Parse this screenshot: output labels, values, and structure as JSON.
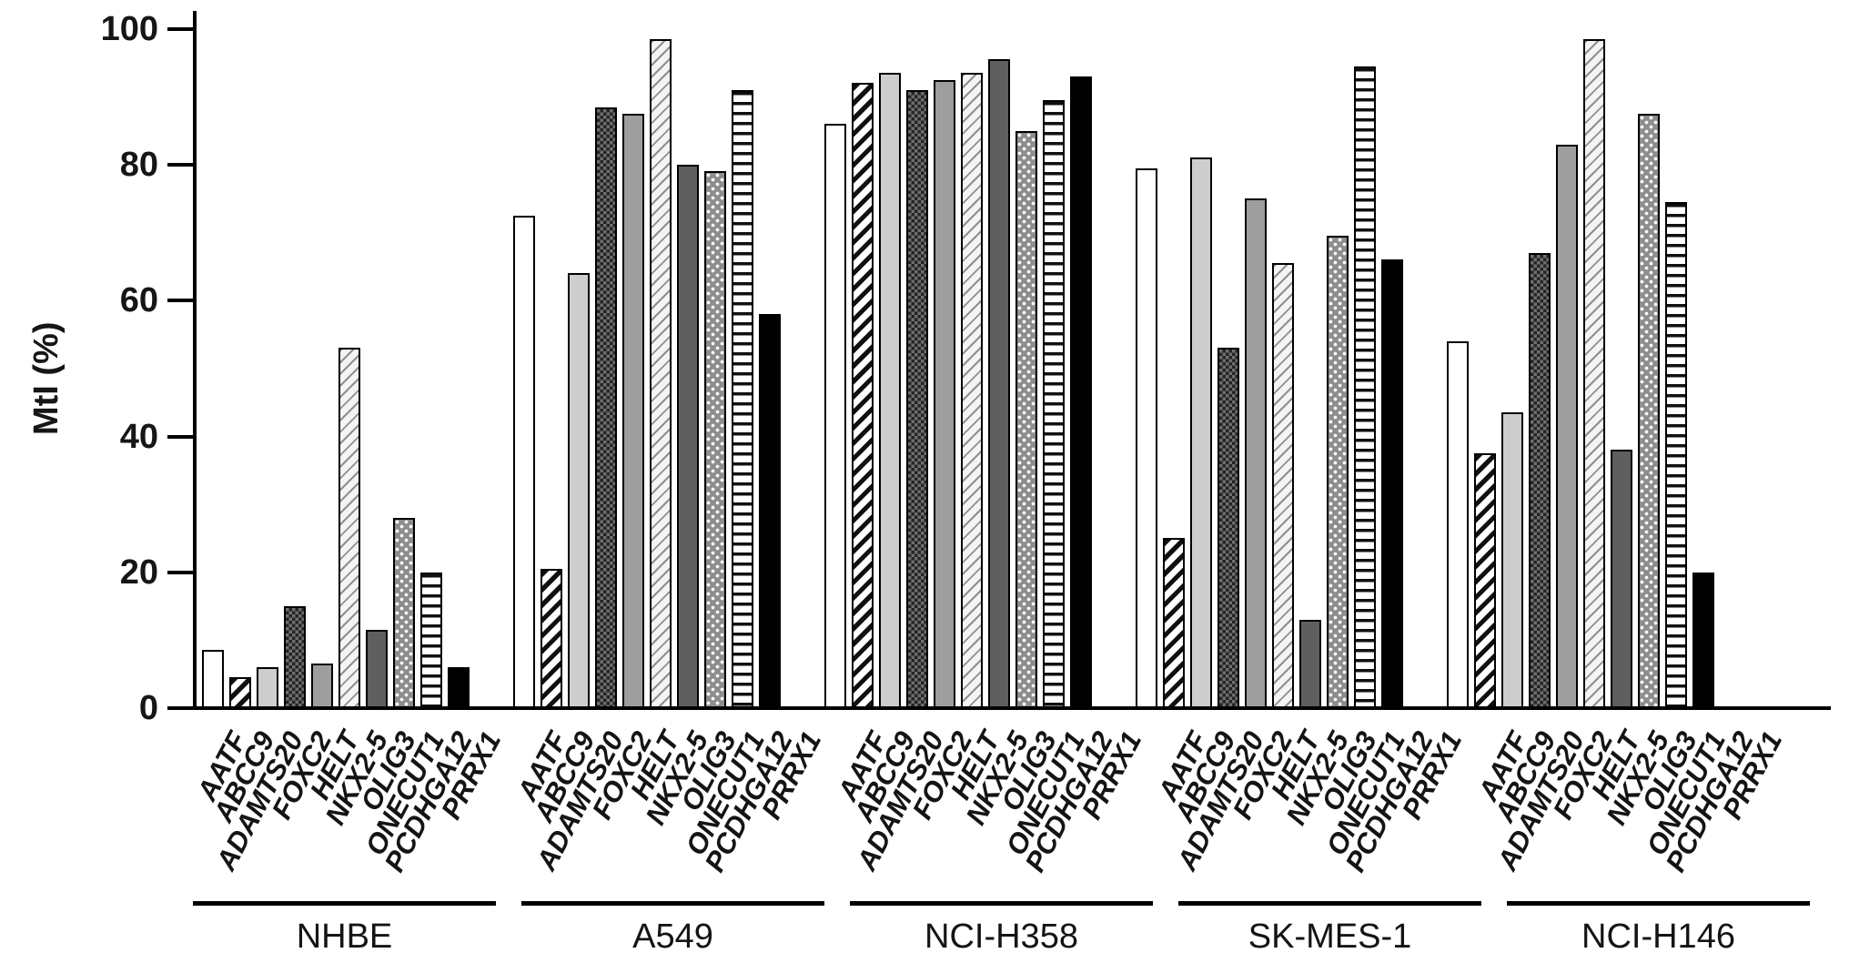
{
  "chart_data": {
    "type": "bar",
    "title": "",
    "ylabel": "MtI (%)",
    "xlabel": "",
    "ylim": [
      0,
      100
    ],
    "yticks": [
      0,
      20,
      40,
      60,
      80,
      100
    ],
    "grid": false,
    "legend": "none (patterns identify genes, labeled under each bar)",
    "genes": [
      "AATF",
      "ABCC9",
      "ADAMTS20",
      "FOXC2",
      "HELT",
      "NKX2-5",
      "OLIG3",
      "ONECUT1",
      "PCDHGA12",
      "PRRX1"
    ],
    "gene_patterns": [
      "plain-white",
      "diagonal-stripes-wide",
      "light-gray",
      "dark-checker",
      "medium-gray",
      "diagonal-hatch-fine",
      "dark-gray",
      "gray-white-dots",
      "horizontal-stripes",
      "solid-black"
    ],
    "groups": [
      {
        "label": "NHBE",
        "values": [
          8,
          4,
          5.5,
          14.5,
          6,
          52.5,
          11,
          27.5,
          19.5,
          5.5
        ]
      },
      {
        "label": "A549",
        "values": [
          72,
          20,
          63.5,
          88,
          87,
          98,
          79.5,
          78.5,
          90.5,
          57.5
        ]
      },
      {
        "label": "NCI-H358",
        "values": [
          85.5,
          91.5,
          93,
          90.5,
          92,
          93,
          95,
          84.5,
          89,
          92.5
        ]
      },
      {
        "label": "SK-MES-1",
        "values": [
          79,
          24.5,
          80.5,
          52.5,
          74.5,
          65,
          12.5,
          69,
          94,
          65.5
        ]
      },
      {
        "label": "NCI-H146",
        "values": [
          53.5,
          37,
          43,
          66.5,
          82.5,
          98,
          37.5,
          87,
          74,
          19.5
        ]
      }
    ],
    "colors": {
      "axis": "#000000",
      "bar_border": "#000000",
      "light_gray_fill": "#cdcdcd",
      "medium_gray_fill": "#9e9e9e",
      "dark_gray_fill": "#5f5f5f",
      "dot_fill_base": "#8d8d8d",
      "black_fill": "#000000"
    }
  }
}
